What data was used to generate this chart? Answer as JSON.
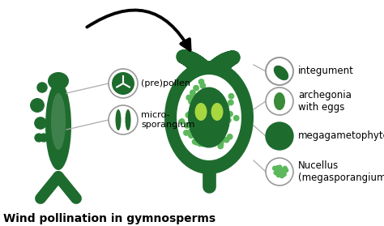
{
  "title": "Wind pollination in gymnosperms",
  "dark_green": "#1e6b2e",
  "medium_green": "#3a8a3a",
  "light_green": "#6abf5e",
  "bright_green": "#c8e84a",
  "dot_green": "#5cb85c",
  "bg_color": "#ffffff",
  "labels": {
    "prepollen": "(pre)pollen",
    "microsporangium": "micro-\nsporangium",
    "integument": "integument",
    "archegonia": "archegonia\nwith eggs",
    "megagametophyte": "megagametophyte",
    "nucellus": "Nucellus\n(megasporangium)"
  }
}
